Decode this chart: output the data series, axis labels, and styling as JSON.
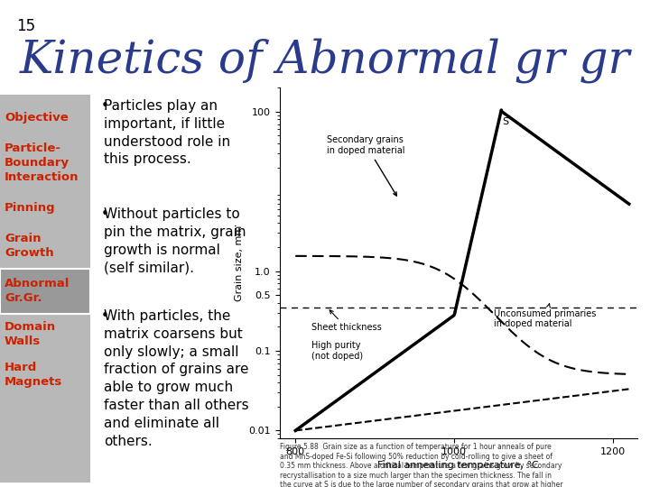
{
  "slide_number": "15",
  "title": "Kinetics of Abnormal gr gr",
  "title_color": "#2B3B8C",
  "title_style": "italic",
  "title_fontsize": 36,
  "background_color": "#ffffff",
  "sidebar_bg": "#b0b0b0",
  "sidebar_items": [
    {
      "text": "Objective",
      "highlight": false
    },
    {
      "text": "Particle-\nBoundary\nInteraction",
      "highlight": false
    },
    {
      "text": "Pinning",
      "highlight": false
    },
    {
      "text": "Grain\nGrowth",
      "highlight": false
    },
    {
      "text": "Abnormal\nGr.Gr.",
      "highlight": true
    },
    {
      "text": "Domain\nWalls",
      "highlight": false
    },
    {
      "text": "Hard\nMagnets",
      "highlight": false
    }
  ],
  "sidebar_text_color": "#cc2200",
  "sidebar_highlight_bg": "#909090",
  "sidebar_normal_bg": "#b8b8b8",
  "bullet_points": [
    "Particles play an\nimportant, if little\nunderstood role in\nthis process.",
    "Without particles to\npin the matrix, grain\ngrowth is normal\n(self similar).",
    "With particles, the\nmatrix coarsens but\nonly slowly; a small\nfraction of grains are\nable to grow much\nfaster than all others\nand eliminate all\nothers."
  ],
  "slide_num_color": "#000000",
  "slide_num_fontsize": 12
}
